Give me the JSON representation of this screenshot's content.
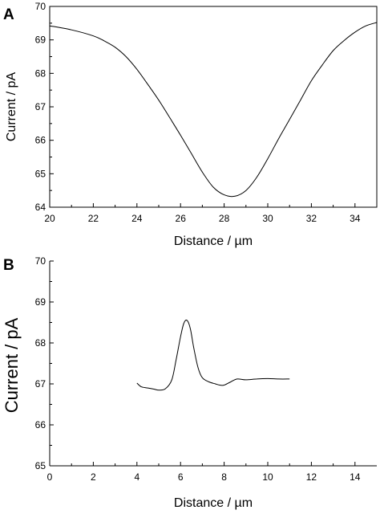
{
  "chart_data": [
    {
      "type": "line",
      "panel_label": "A",
      "xlabel": "Distance / µm",
      "ylabel": "Current / pA",
      "xlim": [
        20,
        35
      ],
      "ylim": [
        64,
        70
      ],
      "xticks": [
        20,
        22,
        24,
        26,
        28,
        30,
        32,
        34
      ],
      "yticks": [
        64,
        65,
        66,
        67,
        68,
        69,
        70
      ],
      "grid": false,
      "series": [
        {
          "x": [
            20,
            21,
            22,
            22.5,
            23,
            23.5,
            24,
            24.5,
            25,
            25.5,
            26,
            26.5,
            27,
            27.5,
            28,
            28.5,
            29,
            29.5,
            30,
            30.5,
            31,
            31.5,
            32,
            32.5,
            33,
            33.5,
            34,
            34.5,
            35
          ],
          "y": [
            69.42,
            69.3,
            69.12,
            68.97,
            68.78,
            68.5,
            68.12,
            67.67,
            67.2,
            66.68,
            66.15,
            65.6,
            65.05,
            64.6,
            64.37,
            64.33,
            64.5,
            64.9,
            65.45,
            66.05,
            66.62,
            67.2,
            67.78,
            68.25,
            68.68,
            68.98,
            69.23,
            69.42,
            69.52
          ]
        }
      ]
    },
    {
      "type": "line",
      "panel_label": "B",
      "xlabel": "Distance / µm",
      "ylabel": "Current / pA",
      "xlim": [
        0,
        15
      ],
      "ylim": [
        65,
        70
      ],
      "xticks": [
        0,
        2,
        4,
        6,
        8,
        10,
        12,
        14
      ],
      "yticks": [
        65,
        66,
        67,
        68,
        69,
        70
      ],
      "grid": false,
      "series": [
        {
          "x": [
            4,
            4.2,
            4.5,
            4.8,
            5,
            5.3,
            5.6,
            5.8,
            6,
            6.15,
            6.3,
            6.45,
            6.6,
            6.8,
            7,
            7.3,
            7.6,
            7.8,
            8,
            8.3,
            8.6,
            9,
            9.5,
            10,
            10.5,
            11
          ],
          "y": [
            67.02,
            66.93,
            66.9,
            66.87,
            66.85,
            66.88,
            67.1,
            67.6,
            68.15,
            68.48,
            68.55,
            68.35,
            67.9,
            67.4,
            67.15,
            67.05,
            67.0,
            66.97,
            66.97,
            67.05,
            67.12,
            67.1,
            67.12,
            67.13,
            67.12,
            67.12
          ]
        }
      ]
    }
  ]
}
